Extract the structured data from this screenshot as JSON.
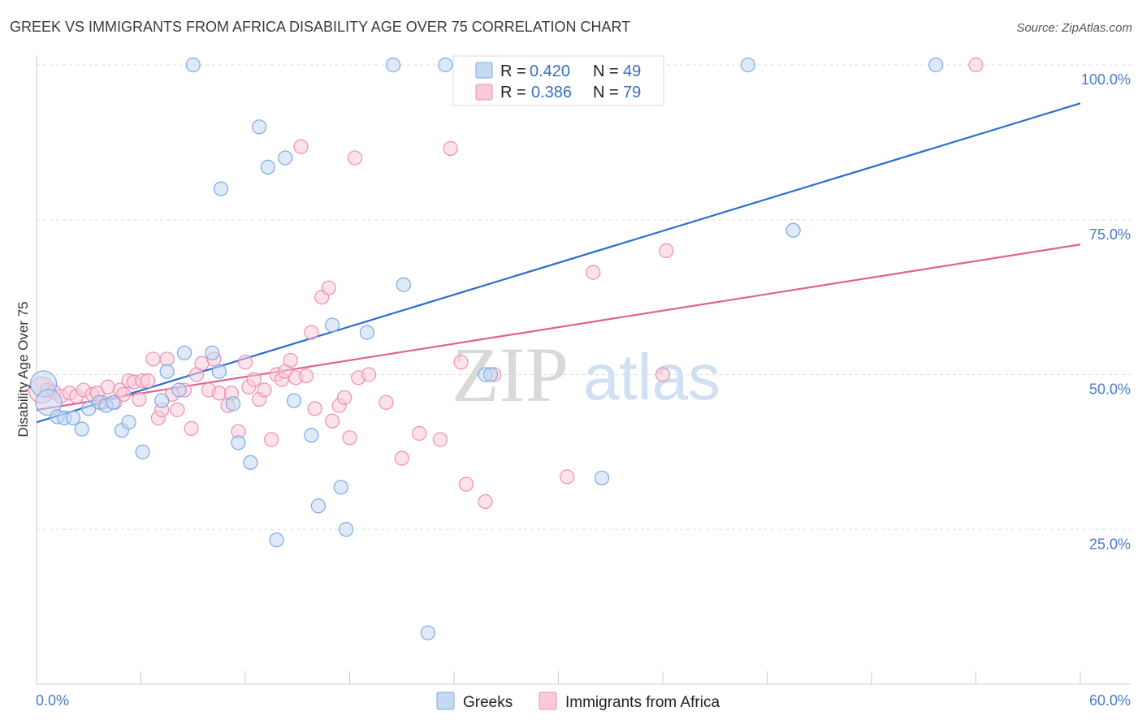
{
  "title": "GREEK VS IMMIGRANTS FROM AFRICA DISABILITY AGE OVER 75 CORRELATION CHART",
  "source": "Source: ZipAtlas.com",
  "watermark": {
    "zip": "ZIP",
    "atlas": "atlas"
  },
  "legend_top": {
    "rows": [
      {
        "r_label": "R = ",
        "r_value": "0.420",
        "n_label": "N = ",
        "n_value": "49"
      },
      {
        "r_label": "R = ",
        "r_value": "0.386",
        "n_label": "N = ",
        "n_value": "79"
      }
    ]
  },
  "chart_data": {
    "type": "scatter",
    "title": "GREEK VS IMMIGRANTS FROM AFRICA DISABILITY AGE OVER 75 CORRELATION CHART",
    "xlabel": "",
    "ylabel": "Disability Age Over 75",
    "xlim": [
      0,
      60
    ],
    "ylim": [
      0,
      100
    ],
    "x_tick_labels": [
      "0.0%",
      "60.0%"
    ],
    "y_ticks": [
      25,
      50,
      75,
      100
    ],
    "y_tick_labels": [
      "25.0%",
      "50.0%",
      "75.0%",
      "100.0%"
    ],
    "grid": true,
    "legend_position": "top-center",
    "series": [
      {
        "name": "Greeks",
        "color": "#7aaae8",
        "fill": "#c5d9f3",
        "line_color": "#2a6fcf",
        "R": 0.42,
        "N": 49,
        "trend": {
          "x": [
            0,
            60
          ],
          "y": [
            42.3,
            93.8
          ]
        },
        "points": [
          {
            "x": 0.4,
            "y": 48.5,
            "big": true
          },
          {
            "x": 0.7,
            "y": 45.5,
            "big": true
          },
          {
            "x": 1.2,
            "y": 43.2
          },
          {
            "x": 1.6,
            "y": 43.0
          },
          {
            "x": 2.1,
            "y": 43.0
          },
          {
            "x": 2.6,
            "y": 41.2
          },
          {
            "x": 3.0,
            "y": 44.5
          },
          {
            "x": 3.6,
            "y": 45.5
          },
          {
            "x": 4.0,
            "y": 45.0
          },
          {
            "x": 4.4,
            "y": 45.5
          },
          {
            "x": 4.9,
            "y": 41.0
          },
          {
            "x": 5.3,
            "y": 42.3
          },
          {
            "x": 6.1,
            "y": 37.5
          },
          {
            "x": 7.2,
            "y": 45.8
          },
          {
            "x": 7.5,
            "y": 50.5
          },
          {
            "x": 8.2,
            "y": 47.5
          },
          {
            "x": 8.5,
            "y": 53.5
          },
          {
            "x": 9.0,
            "y": 100
          },
          {
            "x": 10.1,
            "y": 53.5
          },
          {
            "x": 10.5,
            "y": 50.5
          },
          {
            "x": 10.6,
            "y": 80.0
          },
          {
            "x": 11.3,
            "y": 45.3
          },
          {
            "x": 11.6,
            "y": 39.0
          },
          {
            "x": 12.3,
            "y": 35.8
          },
          {
            "x": 12.8,
            "y": 90.0
          },
          {
            "x": 13.3,
            "y": 83.5
          },
          {
            "x": 13.8,
            "y": 23.3
          },
          {
            "x": 14.3,
            "y": 85.0
          },
          {
            "x": 14.8,
            "y": 45.8
          },
          {
            "x": 15.8,
            "y": 40.2
          },
          {
            "x": 16.2,
            "y": 28.8
          },
          {
            "x": 17.0,
            "y": 58.0
          },
          {
            "x": 17.5,
            "y": 31.8
          },
          {
            "x": 17.8,
            "y": 25.0
          },
          {
            "x": 19.0,
            "y": 56.8
          },
          {
            "x": 20.5,
            "y": 100
          },
          {
            "x": 21.1,
            "y": 64.5
          },
          {
            "x": 22.5,
            "y": 8.3
          },
          {
            "x": 23.5,
            "y": 100
          },
          {
            "x": 24.5,
            "y": 100
          },
          {
            "x": 25.8,
            "y": 50.0
          },
          {
            "x": 26.1,
            "y": 50.0
          },
          {
            "x": 32.5,
            "y": 33.3
          },
          {
            "x": 40.9,
            "y": 100
          },
          {
            "x": 43.5,
            "y": 73.3
          },
          {
            "x": 51.7,
            "y": 100
          }
        ]
      },
      {
        "name": "Immigrants from Africa",
        "color": "#ee8fb0",
        "fill": "#f9cadb",
        "line_color": "#e0628e",
        "R": 0.386,
        "N": 79,
        "trend": {
          "x": [
            0,
            60
          ],
          "y": [
            44.3,
            71.0
          ]
        },
        "points": [
          {
            "x": 0.3,
            "y": 47.5,
            "big": true
          },
          {
            "x": 0.6,
            "y": 47.5
          },
          {
            "x": 1.0,
            "y": 47.2
          },
          {
            "x": 1.4,
            "y": 46.5
          },
          {
            "x": 1.9,
            "y": 47.0
          },
          {
            "x": 2.3,
            "y": 46.5
          },
          {
            "x": 2.7,
            "y": 47.5
          },
          {
            "x": 3.2,
            "y": 46.8
          },
          {
            "x": 3.5,
            "y": 47.0
          },
          {
            "x": 3.8,
            "y": 45.5
          },
          {
            "x": 4.1,
            "y": 48.0
          },
          {
            "x": 4.5,
            "y": 45.5
          },
          {
            "x": 4.8,
            "y": 47.5
          },
          {
            "x": 5.0,
            "y": 46.8
          },
          {
            "x": 5.3,
            "y": 49.0
          },
          {
            "x": 5.6,
            "y": 48.8
          },
          {
            "x": 5.9,
            "y": 46.0
          },
          {
            "x": 6.1,
            "y": 49.0
          },
          {
            "x": 6.4,
            "y": 49.0
          },
          {
            "x": 6.7,
            "y": 52.5
          },
          {
            "x": 7.0,
            "y": 43.0
          },
          {
            "x": 7.2,
            "y": 44.3
          },
          {
            "x": 7.5,
            "y": 52.5
          },
          {
            "x": 7.8,
            "y": 46.8
          },
          {
            "x": 8.1,
            "y": 44.3
          },
          {
            "x": 8.5,
            "y": 47.5
          },
          {
            "x": 8.9,
            "y": 41.3
          },
          {
            "x": 9.2,
            "y": 50.0
          },
          {
            "x": 9.5,
            "y": 51.8
          },
          {
            "x": 9.9,
            "y": 47.5
          },
          {
            "x": 10.2,
            "y": 52.5
          },
          {
            "x": 10.5,
            "y": 47.0
          },
          {
            "x": 11.0,
            "y": 45.0
          },
          {
            "x": 11.2,
            "y": 47.0
          },
          {
            "x": 11.6,
            "y": 40.8
          },
          {
            "x": 12.0,
            "y": 52.0
          },
          {
            "x": 12.2,
            "y": 48.0
          },
          {
            "x": 12.5,
            "y": 49.2
          },
          {
            "x": 12.8,
            "y": 46.0
          },
          {
            "x": 13.1,
            "y": 47.5
          },
          {
            "x": 13.5,
            "y": 39.5
          },
          {
            "x": 13.8,
            "y": 50.0
          },
          {
            "x": 14.1,
            "y": 49.2
          },
          {
            "x": 14.3,
            "y": 50.5
          },
          {
            "x": 14.6,
            "y": 52.3
          },
          {
            "x": 14.9,
            "y": 49.5
          },
          {
            "x": 15.2,
            "y": 86.8
          },
          {
            "x": 15.5,
            "y": 49.8
          },
          {
            "x": 15.8,
            "y": 56.8
          },
          {
            "x": 16.0,
            "y": 44.5
          },
          {
            "x": 16.4,
            "y": 62.5
          },
          {
            "x": 16.8,
            "y": 64.0
          },
          {
            "x": 17.0,
            "y": 42.5
          },
          {
            "x": 17.4,
            "y": 45.0
          },
          {
            "x": 17.7,
            "y": 46.3
          },
          {
            "x": 18.0,
            "y": 39.8
          },
          {
            "x": 18.3,
            "y": 85.0
          },
          {
            "x": 18.5,
            "y": 49.5
          },
          {
            "x": 19.1,
            "y": 50.0
          },
          {
            "x": 20.1,
            "y": 45.5
          },
          {
            "x": 21.0,
            "y": 36.5
          },
          {
            "x": 22.0,
            "y": 40.5
          },
          {
            "x": 23.2,
            "y": 39.5
          },
          {
            "x": 23.8,
            "y": 86.5
          },
          {
            "x": 24.4,
            "y": 52.0
          },
          {
            "x": 24.7,
            "y": 32.3
          },
          {
            "x": 25.8,
            "y": 29.5
          },
          {
            "x": 26.3,
            "y": 50.0
          },
          {
            "x": 30.5,
            "y": 33.5
          },
          {
            "x": 32.0,
            "y": 66.5
          },
          {
            "x": 36.0,
            "y": 50.0
          },
          {
            "x": 36.2,
            "y": 70.0
          },
          {
            "x": 54.0,
            "y": 100
          }
        ]
      }
    ]
  },
  "bottom_legend": [
    "Greeks",
    "Immigrants from Africa"
  ]
}
